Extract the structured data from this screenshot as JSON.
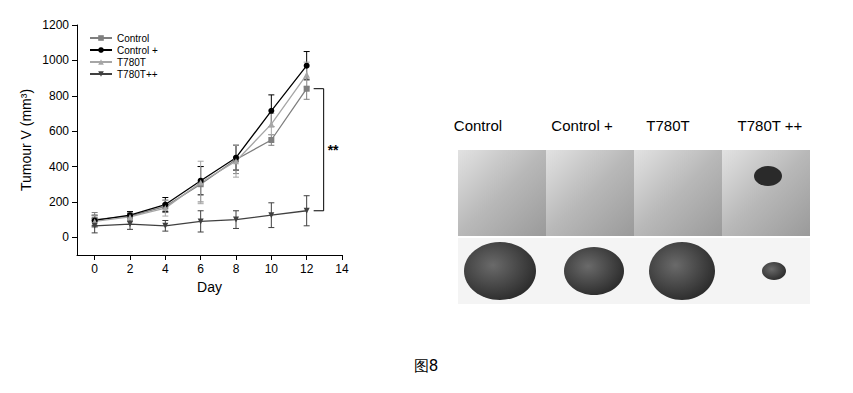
{
  "chart_data": {
    "type": "line",
    "x_label": "Day",
    "y_label": "Tumour V (mm³)",
    "x": [
      0,
      2,
      4,
      6,
      8,
      10,
      12
    ],
    "series": [
      {
        "name": "Control",
        "color": "#7f7f7f",
        "marker": "square",
        "values": [
          100,
          120,
          175,
          300,
          440,
          550,
          840
        ],
        "errors": [
          40,
          25,
          35,
          100,
          80,
          30,
          60
        ]
      },
      {
        "name": "Control +",
        "color": "#000000",
        "marker": "circle",
        "values": [
          95,
          125,
          185,
          320,
          450,
          715,
          970
        ],
        "errors": [
          30,
          20,
          40,
          80,
          70,
          90,
          80
        ]
      },
      {
        "name": "T780T",
        "color": "#a6a6a6",
        "marker": "triangle-up",
        "values": [
          90,
          115,
          165,
          310,
          430,
          640,
          920
        ],
        "errors": [
          35,
          25,
          45,
          120,
          90,
          60,
          70
        ]
      },
      {
        "name": "T780T++",
        "color": "#404040",
        "marker": "triangle-down",
        "values": [
          65,
          75,
          65,
          90,
          100,
          125,
          150
        ],
        "errors": [
          40,
          30,
          30,
          60,
          50,
          70,
          85
        ]
      }
    ],
    "xlim": [
      -1,
      14
    ],
    "xticks": [
      0,
      2,
      4,
      6,
      8,
      10,
      12,
      14
    ],
    "ylim": [
      -100,
      1200
    ],
    "yticks": [
      0,
      200,
      400,
      600,
      800,
      1000,
      1200
    ],
    "grid": false,
    "legend": "upper left",
    "annotations": [
      {
        "text": "**",
        "between": [
          "Control",
          "T780T++"
        ]
      }
    ]
  },
  "photo_panel": {
    "labels": [
      "Control",
      "Control +",
      "T780T",
      "T780T ++"
    ]
  },
  "caption": "图8"
}
